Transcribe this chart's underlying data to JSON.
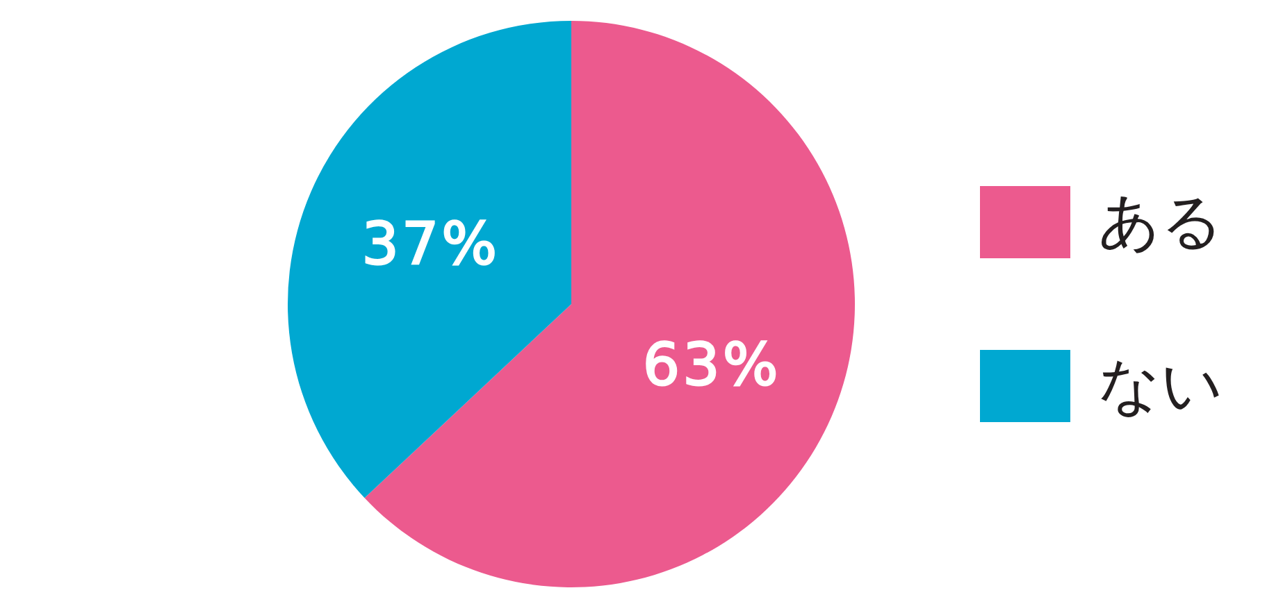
{
  "chart_data": {
    "type": "pie",
    "categories": [
      "ある",
      "ない"
    ],
    "values": [
      63,
      37
    ],
    "colors": [
      "#ec5a8e",
      "#00a8d1"
    ],
    "value_labels": [
      "63%",
      "37%"
    ],
    "legend": "right"
  }
}
